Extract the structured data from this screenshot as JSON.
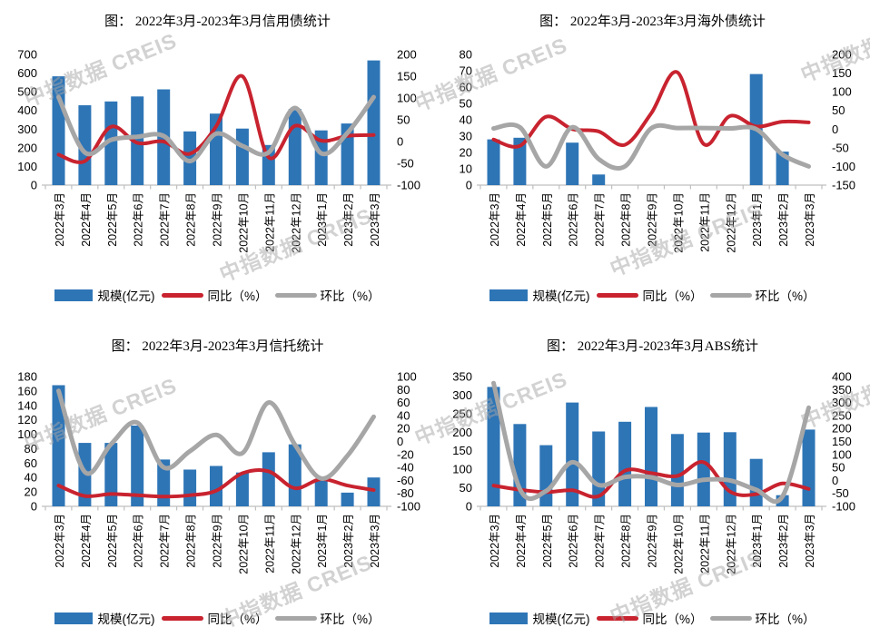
{
  "page": {
    "background": "#ffffff"
  },
  "watermark": {
    "text": "中指数据  CREIS",
    "color": "rgba(165,165,165,0.5)"
  },
  "palette": {
    "bar_blue": "#2E75B6",
    "line_red": "#C8232F",
    "line_gray": "#A6A6A6",
    "axis_line": "#BFBFBF",
    "text": "#000000"
  },
  "chart_data": [
    {
      "type": "combo",
      "title": "图：  2022年3月-2023年3月信用债统计",
      "legend_position": "bottom",
      "grid": false,
      "categories": [
        "2022年3月",
        "2022年4月",
        "2022年5月",
        "2022年6月",
        "2022年7月",
        "2022年8月",
        "2022年9月",
        "2022年10月",
        "2022年11月",
        "2022年12月",
        "2023年1月",
        "2023年2月",
        "2023年3月"
      ],
      "left_axis": {
        "min": 0,
        "max": 700,
        "ticks": [
          700,
          600,
          500,
          400,
          300,
          200,
          100,
          0
        ]
      },
      "right_axis": {
        "min": -100,
        "max": 200,
        "ticks": [
          200,
          150,
          100,
          50,
          0,
          -50,
          -100
        ]
      },
      "series": [
        {
          "name": "规模(亿元)",
          "type": "bar",
          "axis": "left",
          "color": "#2E75B6",
          "values": [
            583,
            428,
            448,
            475,
            513,
            288,
            383,
            303,
            215,
            408,
            293,
            330,
            668
          ]
        },
        {
          "name": "同比（%）",
          "type": "line",
          "axis": "right",
          "color": "#C8232F",
          "values": [
            -30,
            -45,
            34,
            -3,
            0,
            -28,
            35,
            150,
            -36,
            36,
            2,
            13,
            15
          ]
        },
        {
          "name": "环比（%）",
          "type": "line",
          "axis": "right",
          "color": "#A6A6A6",
          "values": [
            102,
            -25,
            4,
            11,
            13,
            -45,
            18,
            -10,
            -25,
            77,
            -27,
            20,
            102
          ]
        }
      ]
    },
    {
      "type": "combo",
      "title": "图：  2022年3月-2023年3月海外债统计",
      "legend_position": "bottom",
      "grid": false,
      "categories": [
        "2022年3月",
        "2022年4月",
        "2022年5月",
        "2022年6月",
        "2022年7月",
        "2022年8月",
        "2022年9月",
        "2022年10月",
        "2022年11月",
        "2022年12月",
        "2023年1月",
        "2023年2月",
        "2023年3月"
      ],
      "left_axis": {
        "min": 0,
        "max": 80,
        "ticks": [
          80,
          70,
          60,
          50,
          40,
          30,
          20,
          10,
          0
        ]
      },
      "right_axis": {
        "min": -150,
        "max": 200,
        "ticks": [
          200,
          150,
          100,
          50,
          0,
          -50,
          -100,
          -150
        ]
      },
      "series": [
        {
          "name": "规模(亿元)",
          "type": "bar",
          "axis": "left",
          "color": "#2E75B6",
          "values": [
            28,
            29,
            0,
            26,
            6.5,
            0,
            0,
            0,
            0,
            0,
            68,
            20.5,
            0
          ]
        },
        {
          "name": "同比（%）",
          "type": "line",
          "axis": "right",
          "color": "#C8232F",
          "values": [
            -28,
            -45,
            33,
            0,
            -6,
            -42,
            42,
            152,
            -40,
            35,
            7,
            20,
            18
          ]
        },
        {
          "name": "环比（%）",
          "type": "line",
          "axis": "right",
          "color": "#A6A6A6",
          "values": [
            2,
            5,
            -100,
            5,
            -80,
            -100,
            2,
            3,
            3,
            2,
            0,
            -68,
            -100
          ]
        }
      ]
    },
    {
      "type": "combo",
      "title": "图：  2022年3月-2023年3月信托统计",
      "legend_position": "bottom",
      "grid": false,
      "categories": [
        "2022年3月",
        "2022年4月",
        "2022年5月",
        "2022年6月",
        "2022年7月",
        "2022年8月",
        "2022年9月",
        "2022年10月",
        "2022年11月",
        "2022年12月",
        "2023年1月",
        "2023年2月",
        "2023年3月"
      ],
      "left_axis": {
        "min": 0,
        "max": 180,
        "ticks": [
          180,
          160,
          140,
          120,
          100,
          80,
          60,
          40,
          20,
          0
        ]
      },
      "right_axis": {
        "min": -100,
        "max": 100,
        "ticks": [
          100,
          80,
          60,
          40,
          20,
          0,
          -20,
          -40,
          -60,
          -80,
          -100
        ]
      },
      "series": [
        {
          "name": "规模(亿元)",
          "type": "bar",
          "axis": "left",
          "color": "#2E75B6",
          "values": [
            168,
            88,
            88,
            112,
            65,
            51,
            56,
            47,
            75,
            86,
            38,
            19,
            40
          ]
        },
        {
          "name": "同比（%）",
          "type": "line",
          "axis": "right",
          "color": "#C8232F",
          "values": [
            -68,
            -84,
            -81,
            -83,
            -85,
            -83,
            -76,
            -49,
            -46,
            -72,
            -58,
            -68,
            -75
          ]
        },
        {
          "name": "环比（%）",
          "type": "line",
          "axis": "right",
          "color": "#A6A6A6",
          "values": [
            78,
            -47,
            -4,
            29,
            -40,
            -15,
            10,
            -18,
            60,
            -5,
            -57,
            -22,
            38
          ]
        }
      ]
    },
    {
      "type": "combo",
      "title": "图：  2022年3月-2023年3月ABS统计",
      "legend_position": "bottom",
      "grid": false,
      "categories": [
        "2022年3月",
        "2022年4月",
        "2022年5月",
        "2022年6月",
        "2022年7月",
        "2022年8月",
        "2022年9月",
        "2022年10月",
        "2022年11月",
        "2022年12月",
        "2023年1月",
        "2023年2月",
        "2023年3月"
      ],
      "left_axis": {
        "min": 0,
        "max": 350,
        "ticks": [
          350,
          300,
          250,
          200,
          150,
          100,
          50,
          0
        ]
      },
      "right_axis": {
        "min": -100,
        "max": 400,
        "ticks": [
          400,
          350,
          300,
          250,
          200,
          150,
          100,
          50,
          0,
          -50,
          -100
        ]
      },
      "series": [
        {
          "name": "规模(亿元)",
          "type": "bar",
          "axis": "left",
          "color": "#2E75B6",
          "values": [
            322,
            222,
            165,
            280,
            202,
            228,
            268,
            195,
            199,
            200,
            128,
            30,
            207
          ]
        },
        {
          "name": "同比（%）",
          "type": "line",
          "axis": "right",
          "color": "#C8232F",
          "values": [
            -20,
            -36,
            -45,
            -38,
            -61,
            37,
            28,
            17,
            70,
            -43,
            -53,
            -12,
            -33
          ]
        },
        {
          "name": "环比（%）",
          "type": "line",
          "axis": "right",
          "color": "#A6A6A6",
          "values": [
            375,
            -33,
            -41,
            70,
            -18,
            13,
            12,
            -18,
            2,
            0,
            -36,
            -62,
            280
          ]
        }
      ]
    }
  ]
}
